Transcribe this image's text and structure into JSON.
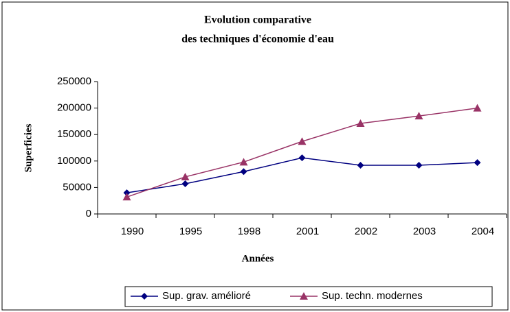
{
  "chart_data": {
    "type": "line",
    "title": [
      "Evolution comparative",
      "des techniques d'économie d'eau"
    ],
    "x_label": "Années",
    "y_label": "Superficies",
    "categories": [
      "1990",
      "1995",
      "1998",
      "2001",
      "2002",
      "2003",
      "2004"
    ],
    "series": [
      {
        "name": "Sup. grav. amélioré",
        "color": "#000080",
        "marker": "diamond",
        "values": [
          40000,
          57000,
          80000,
          106000,
          92000,
          92000,
          97000
        ]
      },
      {
        "name": "Sup. techn. modernes",
        "color": "#993366",
        "marker": "triangle",
        "values": [
          32000,
          70000,
          98000,
          137000,
          171000,
          185000,
          200000
        ]
      }
    ],
    "ylim": [
      0,
      250000
    ],
    "yticks": [
      0,
      50000,
      100000,
      150000,
      200000,
      250000
    ],
    "grid": false,
    "legend": "bottom"
  }
}
